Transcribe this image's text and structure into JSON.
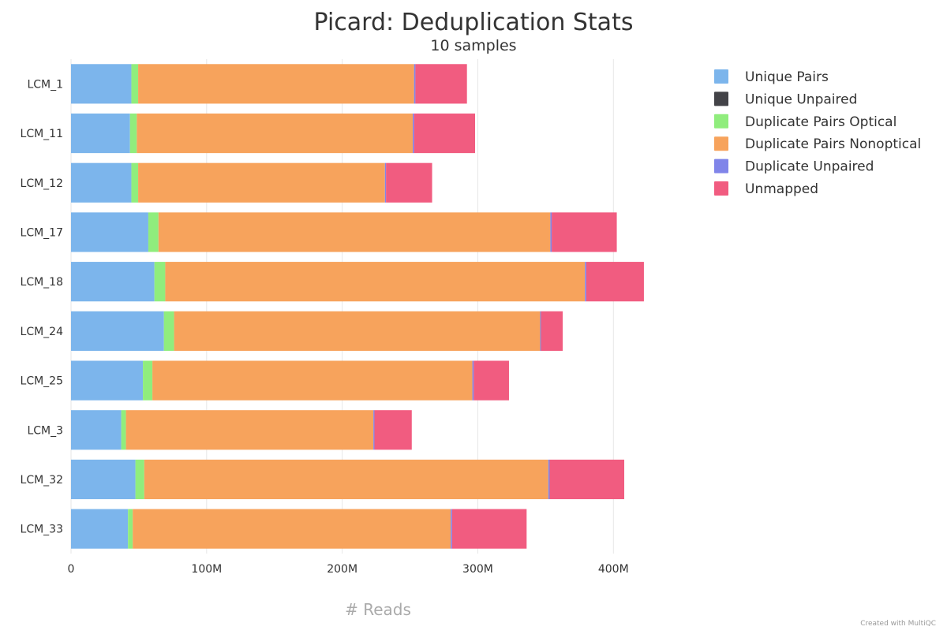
{
  "chart_data": {
    "type": "bar",
    "orientation": "horizontal",
    "stacked": true,
    "title": "Picard: Deduplication Stats",
    "subtitle": "10 samples",
    "xlabel": "# Reads",
    "ylabel": "",
    "xlim": [
      0,
      440000000
    ],
    "x_ticks": [
      {
        "value": 0,
        "label": "0"
      },
      {
        "value": 100000000,
        "label": "100M"
      },
      {
        "value": 200000000,
        "label": "200M"
      },
      {
        "value": 300000000,
        "label": "300M"
      },
      {
        "value": 400000000,
        "label": "400M"
      }
    ],
    "grid": true,
    "legend_position": "top-right",
    "categories": [
      "LCM_1",
      "LCM_11",
      "LCM_12",
      "LCM_17",
      "LCM_18",
      "LCM_24",
      "LCM_25",
      "LCM_3",
      "LCM_32",
      "LCM_33"
    ],
    "series": [
      {
        "name": "Unique Pairs",
        "color": "#7cb5ec",
        "values": [
          44500000,
          43500000,
          44500000,
          57000000,
          61500000,
          68500000,
          53000000,
          37000000,
          47500000,
          42000000
        ]
      },
      {
        "name": "Unique Unpaired",
        "color": "#434348",
        "values": [
          0,
          0,
          0,
          0,
          0,
          0,
          0,
          0,
          0,
          0
        ]
      },
      {
        "name": "Duplicate Pairs Optical",
        "color": "#90ed7d",
        "values": [
          5000000,
          5000000,
          5000000,
          7500000,
          8000000,
          7500000,
          7000000,
          3500000,
          6500000,
          3500000
        ]
      },
      {
        "name": "Duplicate Pairs Nonoptical",
        "color": "#f7a35c",
        "values": [
          203500000,
          203500000,
          182000000,
          289000000,
          309500000,
          270000000,
          236000000,
          182500000,
          298000000,
          234500000
        ]
      },
      {
        "name": "Duplicate Unpaired",
        "color": "#8085e9",
        "values": [
          1000000,
          1000000,
          800000,
          1000000,
          1000000,
          600000,
          1000000,
          800000,
          1000000,
          1000000
        ]
      },
      {
        "name": "Unmapped",
        "color": "#f15c80",
        "values": [
          38000000,
          45000000,
          34000000,
          48000000,
          42500000,
          16000000,
          26000000,
          27500000,
          55000000,
          55000000
        ]
      }
    ]
  },
  "credit": "Created with MultiQC"
}
